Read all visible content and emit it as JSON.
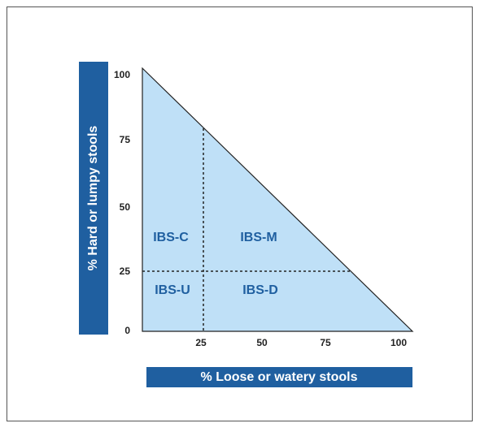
{
  "y_axis_label": "% Hard or lumpy stools",
  "x_axis_label": "% Loose or watery stools",
  "y_ticks": [
    "100",
    "75",
    "50",
    "25",
    "0"
  ],
  "x_ticks": [
    "25",
    "50",
    "75",
    "100"
  ],
  "regions": {
    "constipation": "IBS-C",
    "mixed": "IBS-M",
    "unclassified": "IBS-U",
    "diarrhea": "IBS-D"
  }
}
